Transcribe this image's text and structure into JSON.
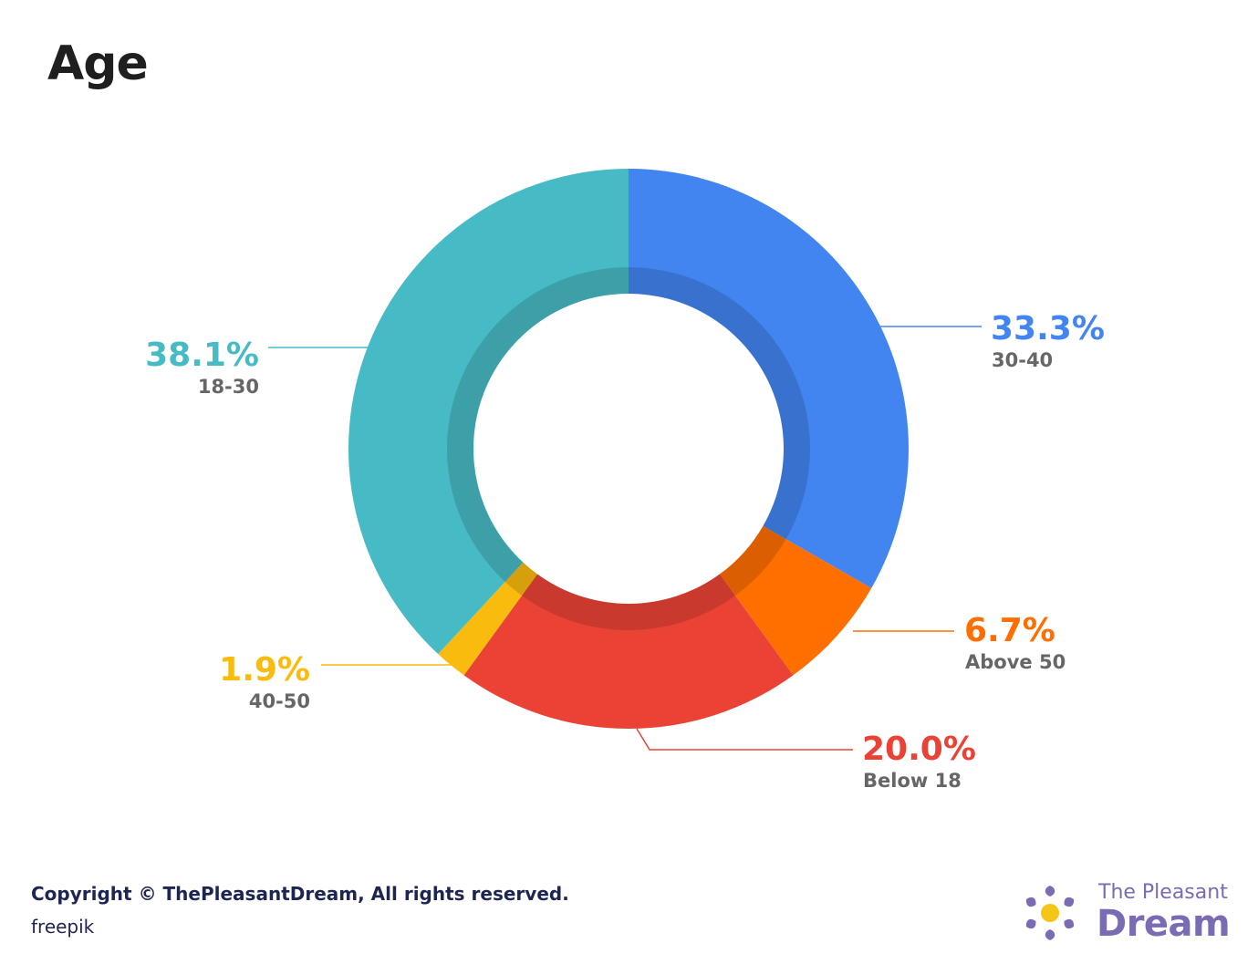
{
  "chart_data": {
    "type": "pie",
    "title": "Age",
    "categories": [
      "30-40",
      "Above 50",
      "Below 18",
      "40-50",
      "18-30"
    ],
    "values": [
      33.3,
      6.7,
      20.0,
      1.9,
      38.1
    ],
    "value_labels": [
      "33.3%",
      "6.7%",
      "20.0%",
      "1.9%",
      "38.1%"
    ],
    "colors": [
      "#4285f0",
      "#ff6f00",
      "#ea4335",
      "#f9bb0e",
      "#47bbc5"
    ],
    "donut": true,
    "legend": "callout labels beside each slice"
  },
  "footer": {
    "copyright": "Copyright © ThePleasantDream, All rights reserved.",
    "credit": "freepik"
  },
  "brand": {
    "line1": "The Pleasant",
    "line2": "Dream",
    "icon": "sun-logo-icon",
    "color": "#7b6bb3",
    "sun_color": "#f5c518"
  }
}
